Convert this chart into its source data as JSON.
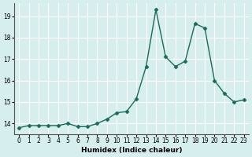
{
  "x": [
    0,
    1,
    2,
    3,
    4,
    5,
    6,
    7,
    8,
    9,
    10,
    11,
    12,
    13,
    14,
    15,
    16,
    17,
    18,
    19,
    20,
    21,
    22,
    23
  ],
  "y": [
    13.8,
    13.9,
    13.9,
    13.9,
    13.9,
    14.0,
    13.85,
    13.85,
    14.0,
    14.2,
    14.5,
    14.55,
    15.15,
    16.65,
    19.3,
    17.1,
    16.65,
    16.9,
    18.65,
    18.45,
    16.0,
    15.4,
    15.0,
    15.1
  ],
  "xlabel": "Humidex (Indice chaleur)",
  "ylabel": "",
  "bg_color": "#d6eeed",
  "grid_color": "#ffffff",
  "line_color": "#1a6b5a",
  "marker_color": "#1a6b5a",
  "xlim": [
    -0.5,
    23.5
  ],
  "ylim": [
    13.5,
    19.6
  ],
  "yticks": [
    14,
    15,
    16,
    17,
    18,
    19
  ],
  "xticks": [
    0,
    1,
    2,
    3,
    4,
    5,
    6,
    7,
    8,
    9,
    10,
    11,
    12,
    13,
    14,
    15,
    16,
    17,
    18,
    19,
    20,
    21,
    22,
    23
  ]
}
